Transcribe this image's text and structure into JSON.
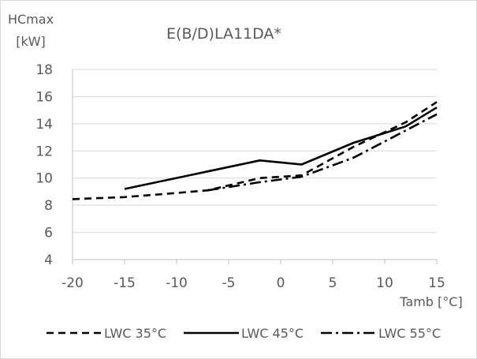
{
  "chart_data": {
    "type": "line",
    "title": "E(B/D)LA11DA*",
    "ylabel_line1": "HCmax",
    "ylabel_line2": "[kW]",
    "xlabel": "Tamb [°C]",
    "xlim": [
      -20,
      15
    ],
    "ylim": [
      4,
      18
    ],
    "xticks": [
      -20,
      -15,
      -10,
      -5,
      0,
      5,
      10,
      15
    ],
    "yticks": [
      4,
      6,
      8,
      10,
      12,
      14,
      16,
      18
    ],
    "grid": "horizontal",
    "legend_position": "bottom",
    "series": [
      {
        "name": "LWC 35°C",
        "style": "dashed",
        "color": "#000000",
        "x": [
          -20,
          -15,
          -10,
          -7,
          -2,
          2,
          7,
          12,
          15
        ],
        "y": [
          8.45,
          8.6,
          8.9,
          9.1,
          10.0,
          10.2,
          12.3,
          14.1,
          15.6
        ]
      },
      {
        "name": "LWC 45°C",
        "style": "solid",
        "color": "#000000",
        "x": [
          -15,
          -2,
          2,
          7,
          12,
          15
        ],
        "y": [
          9.2,
          11.3,
          11.0,
          12.6,
          13.8,
          15.2
        ]
      },
      {
        "name": "LWC 55°C",
        "style": "dashdot",
        "color": "#000000",
        "x": [
          -7,
          -2,
          2,
          7,
          12,
          15
        ],
        "y": [
          9.1,
          9.7,
          10.1,
          11.5,
          13.5,
          14.7
        ]
      }
    ]
  }
}
